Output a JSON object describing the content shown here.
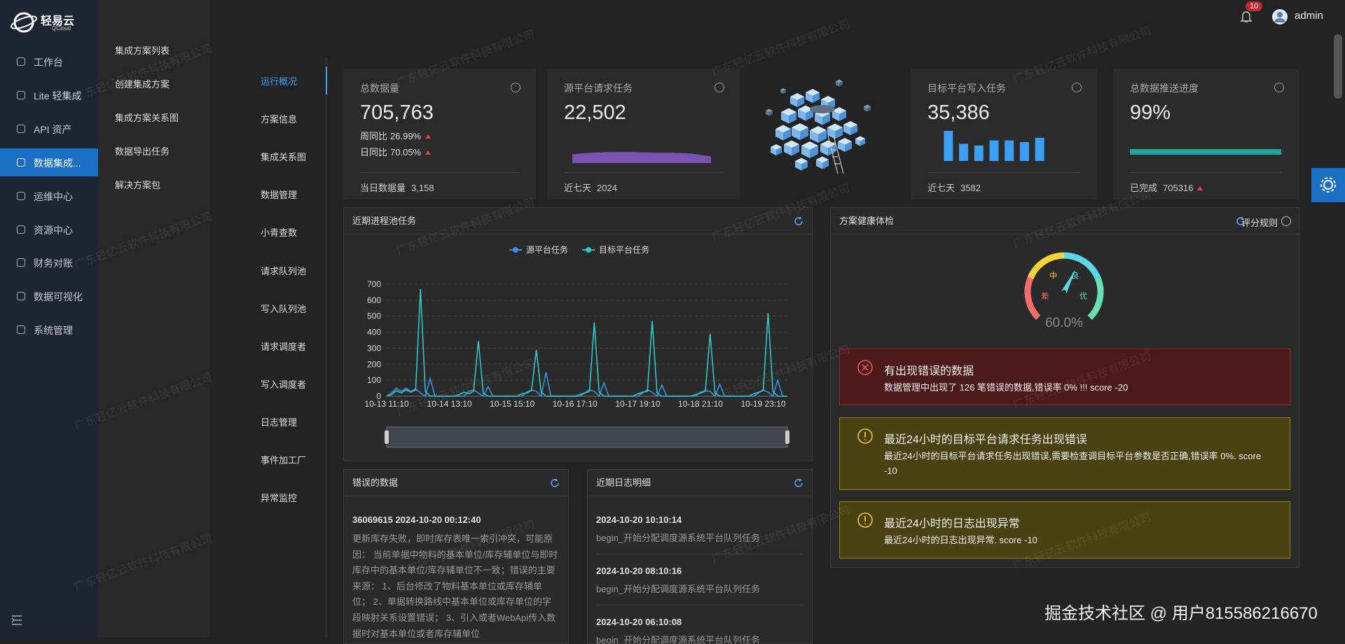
{
  "header": {
    "logo": "轻易云",
    "logo_sub": "QCloud",
    "badge": "10",
    "user": "admin"
  },
  "sidebar": {
    "items": [
      "工作台",
      "Lite 轻集成",
      "API 资产",
      "数据集成...",
      "运维中心",
      "资源中心",
      "财务对账",
      "数据可视化",
      "系统管理"
    ],
    "active": 3
  },
  "subnav": [
    "集成方案列表",
    "创建集成方案",
    "集成方案关系图",
    "数据导出任务",
    "解决方案包"
  ],
  "tabs": {
    "items": [
      "运行概况",
      "方案信息",
      "集成关系图",
      "数据管理",
      "小青查数",
      "请求队列池",
      "写入队列池",
      "请求调度者",
      "写入调度者",
      "日志管理",
      "事件加工厂",
      "异常监控"
    ],
    "active": 0
  },
  "stats": [
    {
      "title": "总数据量",
      "value": "705,763",
      "rows": [
        {
          "label": "周同比",
          "value": "26.99%",
          "trend": "up"
        },
        {
          "label": "日同比",
          "value": "70.05%",
          "trend": "up"
        }
      ],
      "footer": {
        "label": "当日数据量",
        "value": "3,158"
      }
    },
    {
      "title": "源平台请求任务",
      "value": "22,502",
      "footer": {
        "label": "近七天",
        "value": "2024"
      }
    },
    {
      "title": "目标平台写入任务",
      "value": "35,386",
      "footer": {
        "label": "近七天",
        "value": "3582"
      }
    },
    {
      "title": "总数据推送进度",
      "footer": {
        "label": "已完成",
        "value": "705316",
        "trend": "up"
      }
    }
  ],
  "chart_data": [
    {
      "type": "line",
      "title": "近期进程池任务",
      "categories": [
        "10-13 11:10",
        null,
        null,
        null,
        null,
        null,
        null,
        null,
        null,
        null,
        null,
        null,
        null,
        "10-14 13:10",
        null,
        null,
        null,
        null,
        null,
        null,
        null,
        null,
        null,
        null,
        null,
        null,
        "10-15 15:10",
        null,
        null,
        null,
        null,
        null,
        null,
        null,
        null,
        null,
        null,
        null,
        null,
        "10-16 17:10",
        null,
        null,
        null,
        null,
        null,
        null,
        null,
        null,
        null,
        null,
        null,
        null,
        "10-17 19:10",
        null,
        null,
        null,
        null,
        null,
        null,
        null,
        null,
        null,
        null,
        null,
        null,
        "10-18 21:10",
        null,
        null,
        null,
        null,
        null,
        null,
        null,
        null,
        null,
        null,
        null,
        null,
        "10-19 23:10",
        null,
        null,
        null,
        null,
        null
      ],
      "series": [
        {
          "name": "源平台任务",
          "color": "#3a8ee6",
          "values": [
            0,
            20,
            50,
            30,
            50,
            30,
            45,
            20,
            0,
            110,
            0,
            0,
            0,
            0,
            0,
            0,
            0,
            30,
            40,
            20,
            0,
            60,
            0,
            0,
            0,
            0,
            0,
            0,
            0,
            25,
            40,
            30,
            0,
            150,
            0,
            0,
            0,
            0,
            0,
            0,
            0,
            20,
            40,
            30,
            0,
            85,
            0,
            0,
            0,
            0,
            0,
            0,
            0,
            20,
            40,
            25,
            0,
            70,
            0,
            0,
            0,
            0,
            0,
            0,
            0,
            25,
            35,
            30,
            0,
            75,
            0,
            0,
            0,
            0,
            0,
            0,
            0,
            20,
            40,
            25,
            0,
            100,
            0,
            0
          ]
        },
        {
          "name": "目标平台任务",
          "color": "#2ec7c9",
          "values": [
            0,
            10,
            35,
            20,
            40,
            25,
            40,
            670,
            30,
            0,
            0,
            0,
            0,
            0,
            0,
            10,
            25,
            15,
            30,
            345,
            20,
            0,
            0,
            0,
            0,
            0,
            0,
            0,
            15,
            20,
            35,
            290,
            25,
            0,
            0,
            0,
            0,
            0,
            0,
            0,
            10,
            20,
            30,
            460,
            25,
            0,
            0,
            0,
            0,
            0,
            0,
            0,
            15,
            25,
            30,
            470,
            20,
            0,
            0,
            0,
            0,
            0,
            0,
            0,
            10,
            20,
            30,
            390,
            20,
            0,
            0,
            0,
            0,
            0,
            0,
            0,
            15,
            25,
            35,
            520,
            30,
            0,
            0,
            0
          ]
        }
      ],
      "ylim": [
        0,
        700
      ],
      "yticks": [
        0,
        100,
        200,
        300,
        400,
        500,
        600,
        700
      ],
      "grid": true,
      "legend": "top"
    },
    {
      "type": "gauge",
      "value": 60,
      "value_label": "60.0%",
      "ylim": [
        0,
        100
      ],
      "bands": [
        {
          "label": "差",
          "color": "#f56c6c"
        },
        {
          "label": "中",
          "color": "#f7d23a"
        },
        {
          "label": "良",
          "color": "#5ad8e6"
        },
        {
          "label": "优",
          "color": "#67e0b3"
        }
      ]
    },
    {
      "type": "area",
      "values": [
        12,
        14,
        15,
        15,
        14,
        14,
        13,
        9
      ],
      "ylim": [
        0,
        16
      ],
      "color": "#7b52b4"
    },
    {
      "type": "bar",
      "values": [
        35,
        20,
        18,
        24,
        24,
        22,
        27
      ],
      "ylim": [
        0,
        35
      ],
      "color": "#3a9ff5"
    },
    {
      "type": "progress",
      "value": 99,
      "value_label": "99%",
      "xlim": [
        0,
        100
      ],
      "color": "#23a39a"
    }
  ],
  "health": {
    "title": "方案健康体检",
    "rule": "评分规则",
    "alerts": [
      {
        "level": "error",
        "title": "有出现错误的数据",
        "text": "数据管理中出现了 126 笔错误的数据,错误率 0% !!! score -20"
      },
      {
        "level": "warning",
        "title": "最近24小时的目标平台请求任务出现错误",
        "text": "最近24小时的目标平台请求任务出现错误,需要检查调目标平台参数是否正确,错误率 0%. score -10"
      },
      {
        "level": "warning",
        "title": "最近24小时的日志出现异常",
        "text": "最近24小时的日志出现异常. score -10"
      }
    ]
  },
  "errors": {
    "title": "错误的数据",
    "heading": "36069615 2024-10-20 00:12:40",
    "text": "更新库存失败，即时库存表唯一索引冲突，可能原因： 当前单据中物料的基本单位/库存辅单位与即时库存中的基本单位/库存辅单位不一致；错误的主要来源： 1、后台修改了物料基本单位或库存辅单位； 2、单据转换路线中基本单位或库存单位的字段映射关系设置错误； 3、引入或者WebApi传入数据时对基本单位或者库存辅单位"
  },
  "logs": {
    "title": "近期日志明细",
    "entries": [
      {
        "time": "2024-10-20 10:10:14",
        "text": "begin_开始分配调度源系统平台队列任务"
      },
      {
        "time": "2024-10-20 08:10:16",
        "text": "begin_开始分配调度源系统平台队列任务"
      },
      {
        "time": "2024-10-20 06:10:08",
        "text": "begin_开始分配调度源系统平台队列任务"
      }
    ]
  },
  "watermark": "广东轻亿云软件科技有限公司",
  "credit": "掘金技术社区 @ 用户815586216670"
}
